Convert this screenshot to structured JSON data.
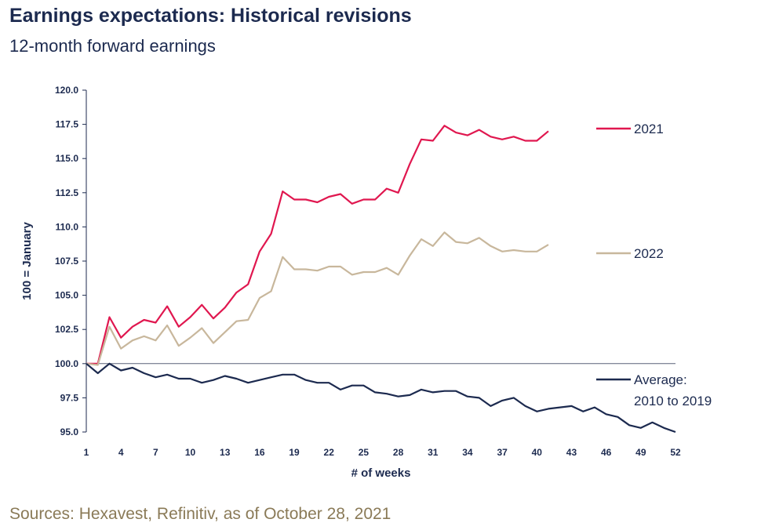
{
  "header": {
    "title": "Earnings expectations: Historical revisions",
    "subtitle": "12-month forward earnings"
  },
  "footer": {
    "source": "Sources: Hexavest, Refinitiv, as of October 28, 2021"
  },
  "colors": {
    "series_2021": "#e0174f",
    "series_2022": "#c8b79c",
    "series_average": "#1c2a4f",
    "axis": "#1c2a4f",
    "source_text": "#8a7a57"
  },
  "chart_data": {
    "type": "line",
    "title": "Earnings expectations: Historical revisions",
    "subtitle": "12-month forward earnings",
    "xlabel": "# of weeks",
    "ylabel": "100 = January",
    "xlim": [
      1,
      52
    ],
    "ylim": [
      95.0,
      120.0
    ],
    "x_ticks": [
      1,
      4,
      7,
      10,
      13,
      16,
      19,
      22,
      25,
      28,
      31,
      34,
      37,
      40,
      43,
      46,
      49,
      52
    ],
    "y_ticks": [
      "95.0",
      "97.5",
      "100.0",
      "102.5",
      "105.0",
      "107.5",
      "110.0",
      "112.5",
      "115.0",
      "117.5",
      "120.0"
    ],
    "reference_line": 100.0,
    "series": [
      {
        "name": "2021",
        "legend": "2021",
        "color": "#e0174f",
        "x": [
          1,
          2,
          3,
          4,
          5,
          6,
          7,
          8,
          9,
          10,
          11,
          12,
          13,
          14,
          15,
          16,
          17,
          18,
          19,
          20,
          21,
          22,
          23,
          24,
          25,
          26,
          27,
          28,
          29,
          30,
          31,
          32,
          33,
          34,
          35,
          36,
          37,
          38,
          39,
          40,
          41
        ],
        "values": [
          100.0,
          100.0,
          103.4,
          101.9,
          102.7,
          103.2,
          103.0,
          104.2,
          102.7,
          103.4,
          104.3,
          103.3,
          104.1,
          105.2,
          105.8,
          108.2,
          109.5,
          112.6,
          112.0,
          112.0,
          111.8,
          112.2,
          112.4,
          111.7,
          112.0,
          112.0,
          112.8,
          112.5,
          114.6,
          116.4,
          116.3,
          117.4,
          116.9,
          116.7,
          117.1,
          116.6,
          116.4,
          116.6,
          116.3,
          116.3,
          117.0
        ]
      },
      {
        "name": "2022",
        "legend": "2022",
        "color": "#c8b79c",
        "x": [
          1,
          2,
          3,
          4,
          5,
          6,
          7,
          8,
          9,
          10,
          11,
          12,
          13,
          14,
          15,
          16,
          17,
          18,
          19,
          20,
          21,
          22,
          23,
          24,
          25,
          26,
          27,
          28,
          29,
          30,
          31,
          32,
          33,
          34,
          35,
          36,
          37,
          38,
          39,
          40,
          41
        ],
        "values": [
          100.0,
          99.9,
          102.7,
          101.1,
          101.7,
          102.0,
          101.7,
          102.8,
          101.3,
          101.9,
          102.6,
          101.5,
          102.3,
          103.1,
          103.2,
          104.8,
          105.3,
          107.8,
          106.9,
          106.9,
          106.8,
          107.1,
          107.1,
          106.5,
          106.7,
          106.7,
          107.0,
          106.5,
          107.9,
          109.1,
          108.6,
          109.6,
          108.9,
          108.8,
          109.2,
          108.6,
          108.2,
          108.3,
          108.2,
          108.2,
          108.7
        ]
      },
      {
        "name": "Average: 2010 to 2019",
        "legend": [
          "Average:",
          "2010 to 2019"
        ],
        "color": "#1c2a4f",
        "x": [
          1,
          2,
          3,
          4,
          5,
          6,
          7,
          8,
          9,
          10,
          11,
          12,
          13,
          14,
          15,
          16,
          17,
          18,
          19,
          20,
          21,
          22,
          23,
          24,
          25,
          26,
          27,
          28,
          29,
          30,
          31,
          32,
          33,
          34,
          35,
          36,
          37,
          38,
          39,
          40,
          41,
          42,
          43,
          44,
          45,
          46,
          47,
          48,
          49,
          50,
          51,
          52
        ],
        "values": [
          100.0,
          99.3,
          100.0,
          99.5,
          99.7,
          99.3,
          99.0,
          99.2,
          98.9,
          98.9,
          98.6,
          98.8,
          99.1,
          98.9,
          98.6,
          98.8,
          99.0,
          99.2,
          99.2,
          98.8,
          98.6,
          98.6,
          98.1,
          98.4,
          98.4,
          97.9,
          97.8,
          97.6,
          97.7,
          98.1,
          97.9,
          98.0,
          98.0,
          97.6,
          97.5,
          96.9,
          97.3,
          97.5,
          96.9,
          96.5,
          96.7,
          96.8,
          96.9,
          96.5,
          96.8,
          96.3,
          96.1,
          95.5,
          95.3,
          95.7,
          95.3,
          95.0
        ]
      }
    ]
  }
}
